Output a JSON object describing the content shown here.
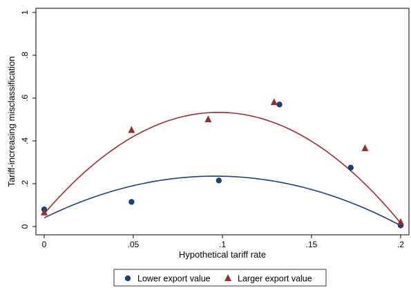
{
  "chart_data": {
    "type": "scatter",
    "title": "",
    "xlabel": "Hypothetical tariff rate",
    "ylabel": "Tariff-increasing misclassification",
    "xlim": [
      0,
      0.2
    ],
    "ylim": [
      0,
      1
    ],
    "x_ticks": [
      {
        "value": 0,
        "label": "0"
      },
      {
        "value": 0.05,
        "label": ".05"
      },
      {
        "value": 0.1,
        "label": ".1"
      },
      {
        "value": 0.15,
        "label": ".15"
      },
      {
        "value": 0.2,
        "label": ".2"
      }
    ],
    "y_ticks": [
      {
        "value": 0,
        "label": "0"
      },
      {
        "value": 0.2,
        "label": ".2"
      },
      {
        "value": 0.4,
        "label": ".4"
      },
      {
        "value": 0.6,
        "label": ".6"
      },
      {
        "value": 0.8,
        "label": ".8"
      },
      {
        "value": 1,
        "label": "1"
      }
    ],
    "grid": false,
    "legend_position": "bottom",
    "series": [
      {
        "name": "Lower export value",
        "marker": "circle",
        "color": "#1f3f6e",
        "points": [
          {
            "x": 0.0,
            "y": 0.08
          },
          {
            "x": 0.049,
            "y": 0.115
          },
          {
            "x": 0.098,
            "y": 0.215
          },
          {
            "x": 0.132,
            "y": 0.57
          },
          {
            "x": 0.172,
            "y": 0.275
          },
          {
            "x": 0.2,
            "y": 0.005
          }
        ],
        "fit": {
          "x0": 0.0,
          "x1": 0.2,
          "coeffs": [
            0.0405,
            4.07,
            -21.25
          ]
        }
      },
      {
        "name": "Larger export value",
        "marker": "triangle",
        "color": "#943034",
        "points": [
          {
            "x": 0.0,
            "y": 0.065
          },
          {
            "x": 0.049,
            "y": 0.45
          },
          {
            "x": 0.092,
            "y": 0.5
          },
          {
            "x": 0.129,
            "y": 0.58
          },
          {
            "x": 0.18,
            "y": 0.365
          },
          {
            "x": 0.2,
            "y": 0.02
          }
        ],
        "fit": {
          "x0": 0.0,
          "x1": 0.2,
          "coeffs": [
            0.06,
            9.68,
            -49.5
          ]
        }
      }
    ]
  }
}
